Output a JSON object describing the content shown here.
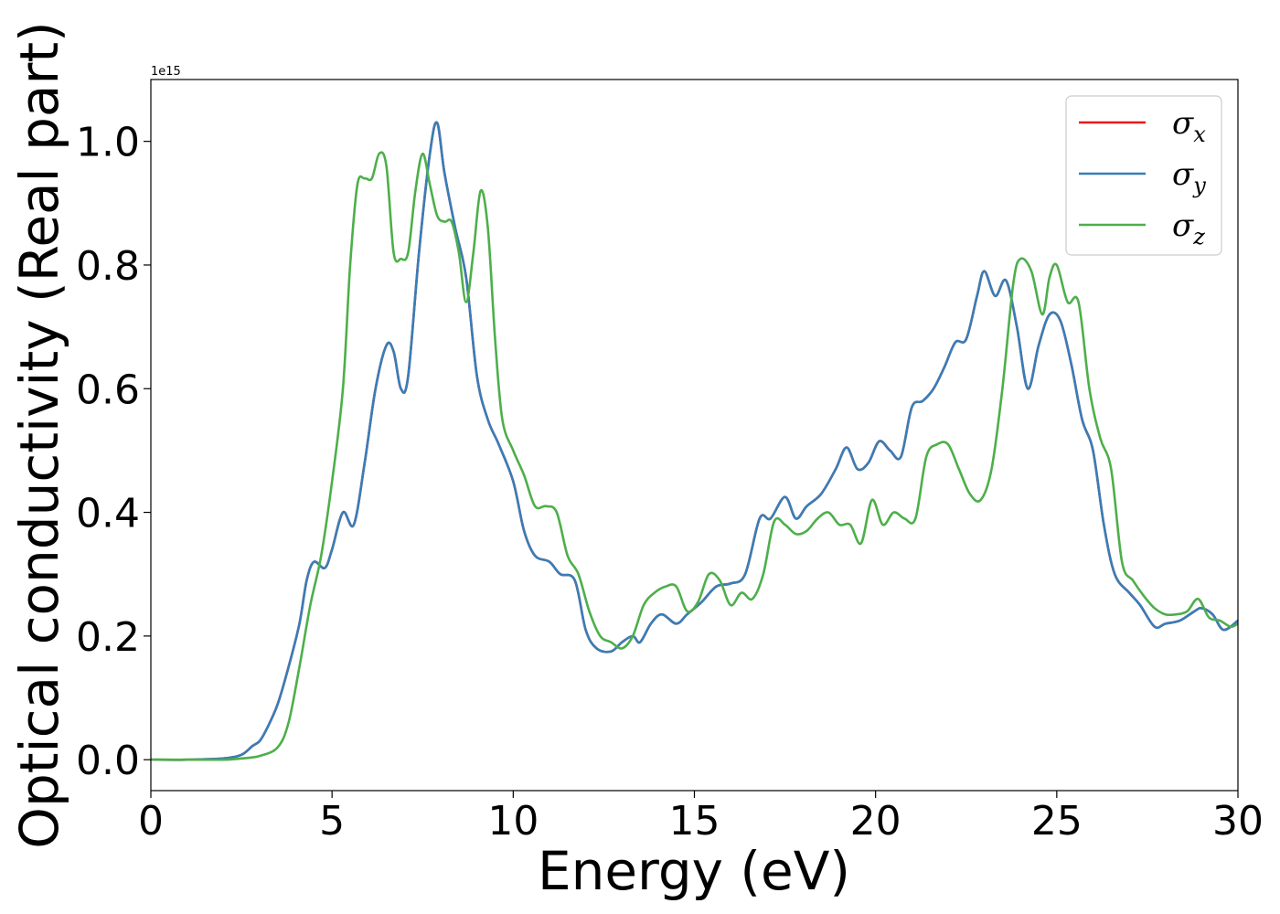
{
  "chart_data": {
    "type": "line",
    "title": "",
    "xlabel": "Energy (eV)",
    "ylabel": "Optical conductivity (Real part)",
    "y_offset_text": "1e15",
    "xlim": [
      0,
      30
    ],
    "ylim": [
      -0.05,
      1.1
    ],
    "grid": false,
    "legend_position": "top-right",
    "x_ticks": [
      "0",
      "5",
      "10",
      "15",
      "20",
      "25",
      "30"
    ],
    "y_ticks": [
      "0.0",
      "0.2",
      "0.4",
      "0.6",
      "0.8",
      "1.0"
    ],
    "series": [
      {
        "name": "σ_x",
        "legend_main": "σ",
        "legend_sub": "x",
        "color": "#e41a1c",
        "x": [
          0,
          1,
          2,
          2.5,
          2.8,
          3,
          3.2,
          3.5,
          3.8,
          4.1,
          4.3,
          4.5,
          4.8,
          5.0,
          5.3,
          5.6,
          5.9,
          6.2,
          6.5,
          6.7,
          6.9,
          7.1,
          7.4,
          7.7,
          7.9,
          8.1,
          8.4,
          8.7,
          9.0,
          9.3,
          9.6,
          10.0,
          10.3,
          10.6,
          11.0,
          11.3,
          11.7,
          12.0,
          12.3,
          12.7,
          13.0,
          13.3,
          13.5,
          13.8,
          14.1,
          14.5,
          14.8,
          15.2,
          15.6,
          16.0,
          16.4,
          16.8,
          17.1,
          17.5,
          17.8,
          18.1,
          18.5,
          18.9,
          19.2,
          19.5,
          19.8,
          20.1,
          20.4,
          20.7,
          21.0,
          21.3,
          21.6,
          21.9,
          22.2,
          22.5,
          22.8,
          23.0,
          23.3,
          23.6,
          23.9,
          24.2,
          24.5,
          24.8,
          25.1,
          25.4,
          25.7,
          26.0,
          26.3,
          26.6,
          27.0,
          27.3,
          27.7,
          28.0,
          28.4,
          28.8,
          29.0,
          29.3,
          29.6,
          30.0
        ],
        "y": [
          0.0,
          0.0,
          0.002,
          0.008,
          0.022,
          0.03,
          0.05,
          0.09,
          0.15,
          0.22,
          0.29,
          0.32,
          0.31,
          0.34,
          0.4,
          0.38,
          0.48,
          0.6,
          0.67,
          0.66,
          0.6,
          0.62,
          0.82,
          0.98,
          1.03,
          0.95,
          0.86,
          0.78,
          0.62,
          0.55,
          0.51,
          0.45,
          0.37,
          0.33,
          0.32,
          0.3,
          0.29,
          0.21,
          0.18,
          0.175,
          0.19,
          0.2,
          0.19,
          0.22,
          0.235,
          0.22,
          0.235,
          0.255,
          0.28,
          0.285,
          0.3,
          0.39,
          0.39,
          0.425,
          0.39,
          0.41,
          0.43,
          0.47,
          0.505,
          0.47,
          0.48,
          0.515,
          0.5,
          0.49,
          0.57,
          0.58,
          0.6,
          0.635,
          0.675,
          0.68,
          0.75,
          0.79,
          0.75,
          0.775,
          0.7,
          0.6,
          0.67,
          0.72,
          0.71,
          0.64,
          0.55,
          0.5,
          0.38,
          0.3,
          0.27,
          0.25,
          0.215,
          0.22,
          0.225,
          0.24,
          0.245,
          0.235,
          0.21,
          0.225
        ]
      },
      {
        "name": "σ_y",
        "legend_main": "σ",
        "legend_sub": "y",
        "color": "#377eb8",
        "x": [
          0,
          1,
          2,
          2.5,
          2.8,
          3,
          3.2,
          3.5,
          3.8,
          4.1,
          4.3,
          4.5,
          4.8,
          5.0,
          5.3,
          5.6,
          5.9,
          6.2,
          6.5,
          6.7,
          6.9,
          7.1,
          7.4,
          7.7,
          7.9,
          8.1,
          8.4,
          8.7,
          9.0,
          9.3,
          9.6,
          10.0,
          10.3,
          10.6,
          11.0,
          11.3,
          11.7,
          12.0,
          12.3,
          12.7,
          13.0,
          13.3,
          13.5,
          13.8,
          14.1,
          14.5,
          14.8,
          15.2,
          15.6,
          16.0,
          16.4,
          16.8,
          17.1,
          17.5,
          17.8,
          18.1,
          18.5,
          18.9,
          19.2,
          19.5,
          19.8,
          20.1,
          20.4,
          20.7,
          21.0,
          21.3,
          21.6,
          21.9,
          22.2,
          22.5,
          22.8,
          23.0,
          23.3,
          23.6,
          23.9,
          24.2,
          24.5,
          24.8,
          25.1,
          25.4,
          25.7,
          26.0,
          26.3,
          26.6,
          27.0,
          27.3,
          27.7,
          28.0,
          28.4,
          28.8,
          29.0,
          29.3,
          29.6,
          30.0
        ],
        "y": [
          0.0,
          0.0,
          0.002,
          0.008,
          0.022,
          0.03,
          0.05,
          0.09,
          0.15,
          0.22,
          0.29,
          0.32,
          0.31,
          0.34,
          0.4,
          0.38,
          0.48,
          0.6,
          0.67,
          0.66,
          0.6,
          0.62,
          0.82,
          0.98,
          1.03,
          0.95,
          0.86,
          0.78,
          0.62,
          0.55,
          0.51,
          0.45,
          0.37,
          0.33,
          0.32,
          0.3,
          0.29,
          0.21,
          0.18,
          0.175,
          0.19,
          0.2,
          0.19,
          0.22,
          0.235,
          0.22,
          0.235,
          0.255,
          0.28,
          0.285,
          0.3,
          0.39,
          0.39,
          0.425,
          0.39,
          0.41,
          0.43,
          0.47,
          0.505,
          0.47,
          0.48,
          0.515,
          0.5,
          0.49,
          0.57,
          0.58,
          0.6,
          0.635,
          0.675,
          0.68,
          0.75,
          0.79,
          0.75,
          0.775,
          0.7,
          0.6,
          0.67,
          0.72,
          0.71,
          0.64,
          0.55,
          0.5,
          0.38,
          0.3,
          0.27,
          0.25,
          0.215,
          0.22,
          0.225,
          0.24,
          0.245,
          0.235,
          0.21,
          0.225
        ]
      },
      {
        "name": "σ_z",
        "legend_main": "σ",
        "legend_sub": "z",
        "color": "#4daf4a",
        "x": [
          0,
          1,
          2,
          2.5,
          3,
          3.5,
          3.8,
          4.1,
          4.4,
          4.7,
          5.0,
          5.3,
          5.5,
          5.7,
          5.9,
          6.1,
          6.3,
          6.5,
          6.7,
          6.9,
          7.1,
          7.3,
          7.5,
          7.7,
          7.9,
          8.1,
          8.3,
          8.5,
          8.7,
          8.9,
          9.1,
          9.3,
          9.5,
          9.7,
          10.0,
          10.3,
          10.6,
          10.9,
          11.2,
          11.5,
          11.8,
          12.1,
          12.4,
          12.7,
          13.0,
          13.3,
          13.6,
          13.9,
          14.2,
          14.5,
          14.8,
          15.1,
          15.4,
          15.7,
          16.0,
          16.3,
          16.6,
          16.9,
          17.2,
          17.5,
          17.8,
          18.1,
          18.4,
          18.7,
          19.0,
          19.3,
          19.6,
          19.9,
          20.2,
          20.5,
          20.8,
          21.1,
          21.4,
          21.7,
          22.0,
          22.3,
          22.6,
          22.9,
          23.2,
          23.5,
          23.8,
          24.0,
          24.3,
          24.6,
          24.8,
          25.0,
          25.3,
          25.6,
          25.9,
          26.2,
          26.5,
          26.8,
          27.1,
          27.4,
          27.7,
          28.0,
          28.3,
          28.6,
          28.9,
          29.2,
          29.5,
          29.8,
          30.0
        ],
        "y": [
          0.0,
          0.0,
          0.0,
          0.002,
          0.006,
          0.02,
          0.06,
          0.15,
          0.25,
          0.33,
          0.45,
          0.6,
          0.8,
          0.93,
          0.94,
          0.94,
          0.98,
          0.96,
          0.82,
          0.81,
          0.82,
          0.92,
          0.98,
          0.93,
          0.88,
          0.87,
          0.87,
          0.82,
          0.74,
          0.82,
          0.92,
          0.86,
          0.68,
          0.55,
          0.5,
          0.46,
          0.41,
          0.41,
          0.4,
          0.33,
          0.3,
          0.24,
          0.2,
          0.19,
          0.18,
          0.2,
          0.25,
          0.27,
          0.28,
          0.28,
          0.24,
          0.255,
          0.3,
          0.29,
          0.25,
          0.27,
          0.26,
          0.3,
          0.385,
          0.38,
          0.365,
          0.37,
          0.39,
          0.4,
          0.38,
          0.38,
          0.35,
          0.42,
          0.38,
          0.4,
          0.39,
          0.39,
          0.49,
          0.51,
          0.51,
          0.47,
          0.43,
          0.42,
          0.47,
          0.6,
          0.77,
          0.81,
          0.79,
          0.72,
          0.78,
          0.8,
          0.74,
          0.74,
          0.6,
          0.52,
          0.47,
          0.32,
          0.29,
          0.265,
          0.245,
          0.235,
          0.235,
          0.24,
          0.26,
          0.23,
          0.225,
          0.215,
          0.22
        ]
      }
    ]
  }
}
